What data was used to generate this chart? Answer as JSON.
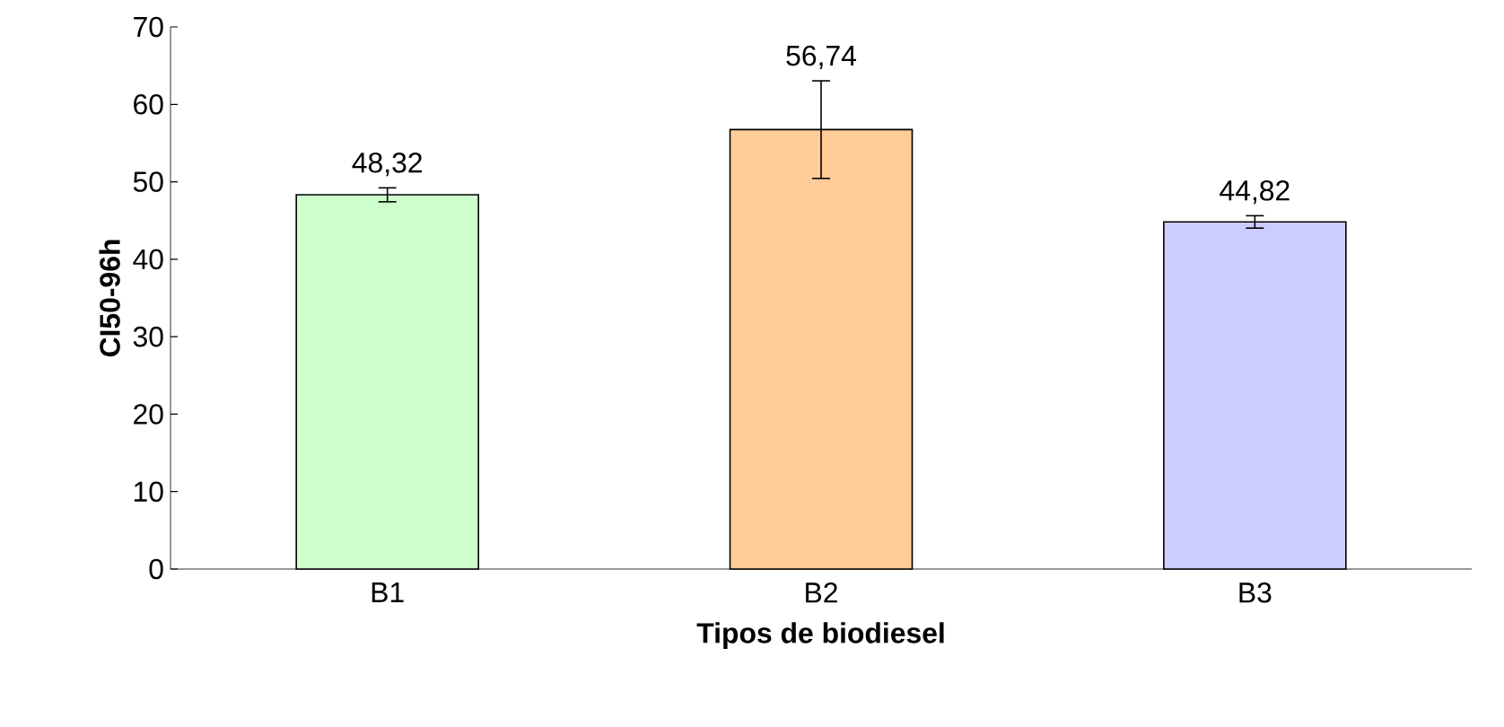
{
  "chart_data": {
    "type": "bar",
    "xlabel": "Tipos de biodiesel",
    "ylabel": "CI50-96h",
    "categories": [
      "B1",
      "B2",
      "B3"
    ],
    "values": [
      48.32,
      56.74,
      44.82
    ],
    "value_labels": [
      "48,32",
      "56,74",
      "44,82"
    ],
    "colors": [
      "#ccffcc",
      "#ffcc99",
      "#ccccff"
    ],
    "errors": [
      0.9,
      6.3,
      0.8
    ],
    "ylim": [
      0,
      70
    ],
    "yticks": [
      0,
      10,
      20,
      30,
      40,
      50,
      60,
      70
    ],
    "grid": false
  }
}
